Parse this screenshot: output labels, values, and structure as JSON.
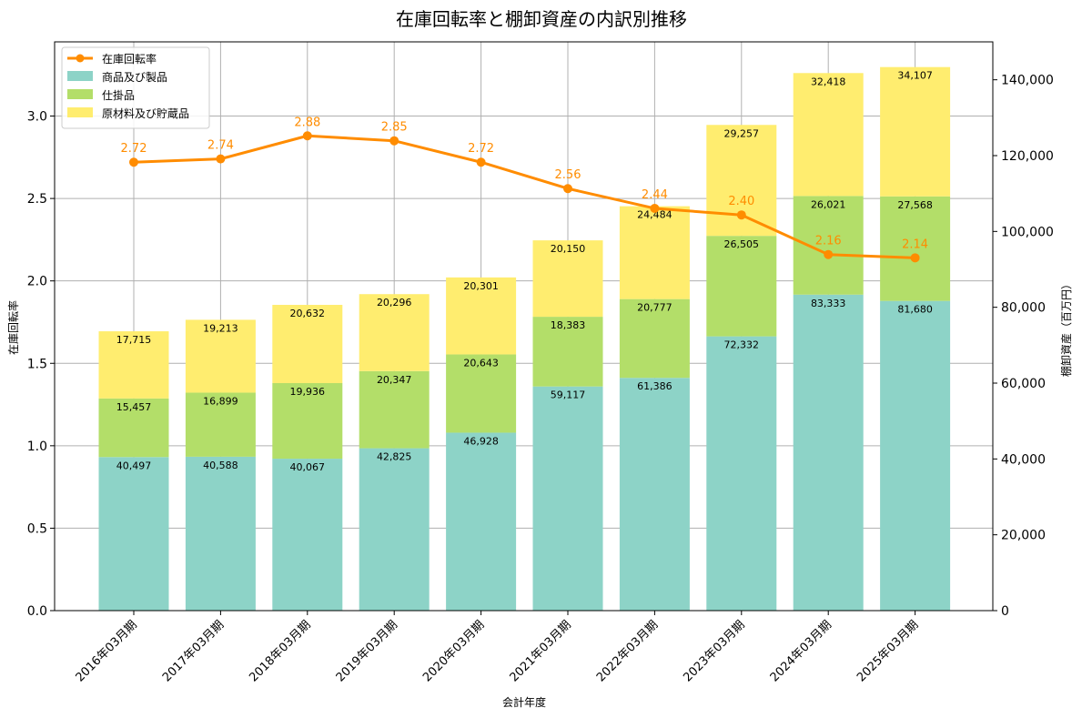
{
  "chart_data": {
    "type": "bar",
    "title": "在庫回転率と棚卸資産の内訳別推移",
    "xlabel": "会計年度",
    "ylabel_left": "在庫回転率",
    "ylabel_right": "棚卸資産（百万円）",
    "categories": [
      "2016年03月期",
      "2017年03月期",
      "2018年03月期",
      "2019年03月期",
      "2020年03月期",
      "2021年03月期",
      "2022年03月期",
      "2023年03月期",
      "2024年03月期",
      "2025年03月期"
    ],
    "stacked_series": [
      {
        "name": "商品及び製品",
        "color": "#8dd3c7",
        "values": [
          40497,
          40588,
          40067,
          42825,
          46928,
          59117,
          61386,
          72332,
          83333,
          81680
        ]
      },
      {
        "name": "仕掛品",
        "color": "#b3de69",
        "values": [
          15457,
          16899,
          19936,
          20347,
          20643,
          18383,
          20777,
          26505,
          26021,
          27568
        ]
      },
      {
        "name": "原材料及び貯蔵品",
        "color": "#ffed6f",
        "values": [
          17715,
          19213,
          20632,
          20296,
          20301,
          20150,
          24484,
          29257,
          32418,
          34107
        ]
      }
    ],
    "line_series": {
      "name": "在庫回転率",
      "color": "#ff8c00",
      "values": [
        2.72,
        2.74,
        2.88,
        2.85,
        2.72,
        2.56,
        2.44,
        2.4,
        2.16,
        2.14
      ]
    },
    "y_left": {
      "lim": [
        0,
        3.45
      ],
      "ticks": [
        "0.0",
        "0.5",
        "1.0",
        "1.5",
        "2.0",
        "2.5",
        "3.0"
      ]
    },
    "y_right": {
      "lim": [
        0,
        150000
      ],
      "ticks": [
        "0",
        "20,000",
        "40,000",
        "60,000",
        "80,000",
        "100,000",
        "120,000",
        "140,000"
      ]
    },
    "grid": true,
    "legend_position": "top-left"
  }
}
